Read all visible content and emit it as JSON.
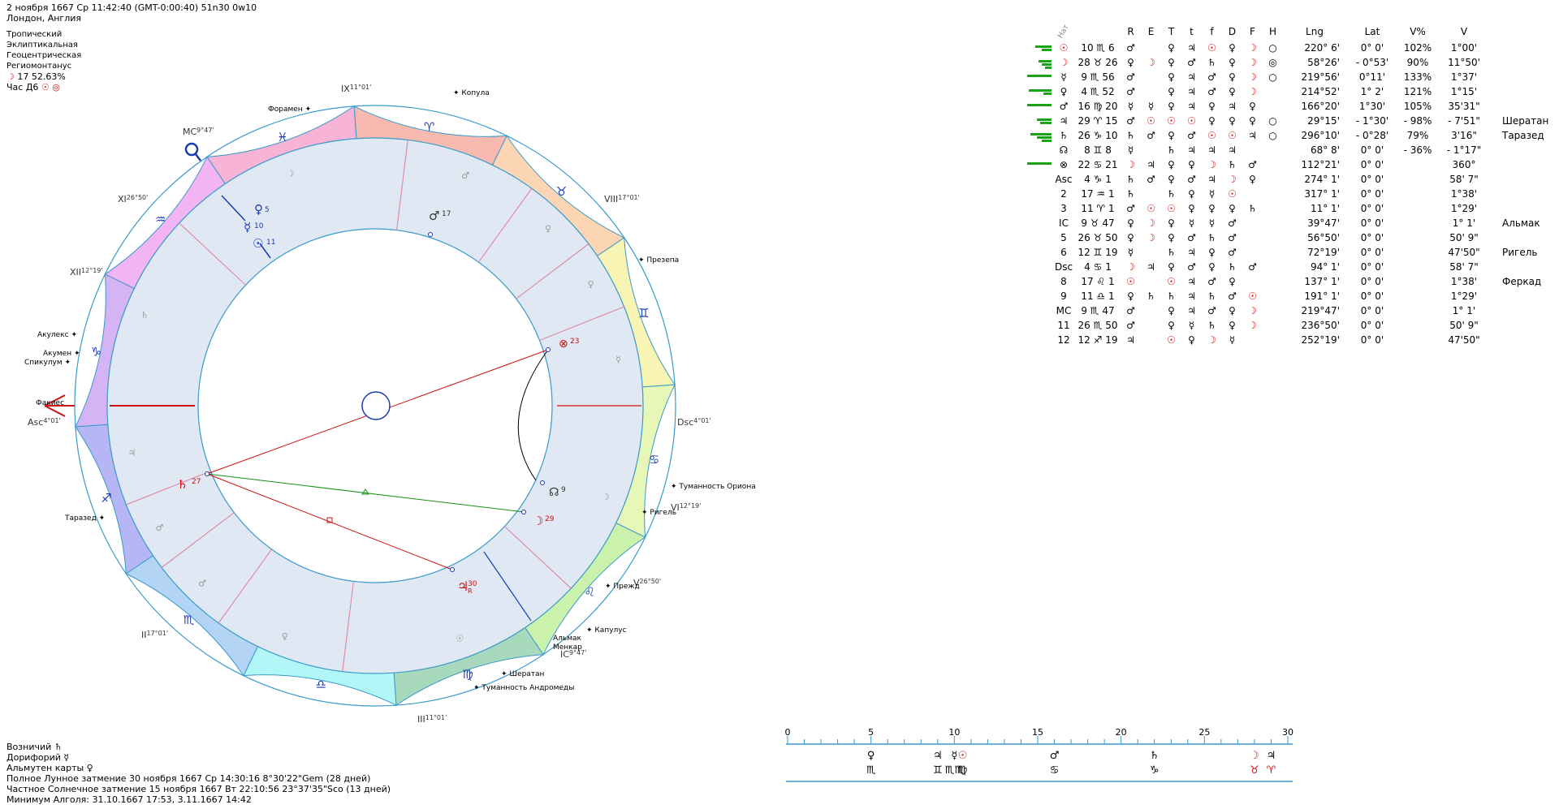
{
  "header": {
    "line1": "2 ноября 1667  Ср  11:42:40 (GMT-0:00:40) 51n30  0w10",
    "line2": "Лондон, Англия",
    "settings": [
      "Тропический",
      "Эклиптикальная",
      "Геоцентрическая",
      "Региомонтанус"
    ],
    "moon_phase": "17 52.63%",
    "hour": "Час Д6"
  },
  "houses": {
    "ix": "IX",
    "ix_deg": "11°01'",
    "mc": "MC",
    "mc_deg": "9°47'",
    "xi": "XI",
    "xi_deg": "26°50'",
    "xii": "XII",
    "xii_deg": "12°19'",
    "asc": "Asc",
    "asc_deg": "4°01'",
    "ii": "II",
    "ii_deg": "17°01'",
    "iii": "III",
    "iii_deg": "11°01'",
    "ic": "IC",
    "ic_deg": "9°47'",
    "v": "V",
    "v_deg": "26°50'",
    "vi": "VI",
    "vi_deg": "12°19'",
    "dsc": "Dsc",
    "dsc_deg": "4°01'",
    "viii": "VIII",
    "viii_deg": "17°01'"
  },
  "stars": {
    "kopula": "Копула",
    "foramen": "Форамен",
    "praesepe": "Презепа",
    "akulex": "Акулекс",
    "akumen": "Акумен",
    "spikulum": "Спикулум",
    "fakies": "Факиес",
    "taraz": "Таразед",
    "orion": "Туманность Ориона",
    "rigel": "Ригель",
    "prezhd": "Прежд",
    "kapulus": "Капулус",
    "almak": "Альмак",
    "menkar": "Менкар",
    "sheratan": "Шератан",
    "andromeda": "Туманность Андромеды"
  },
  "planets_in_chart": {
    "venus_deg": "5",
    "mercury_deg": "10",
    "sun_deg": "11",
    "mars_deg": "17",
    "pof_deg": "23",
    "node_deg": "9",
    "moon_deg": "29",
    "saturn_deg": "27",
    "jupiter_deg": "30",
    "jupiter_r": "R"
  },
  "table": {
    "head_nat": "Нат",
    "columns": [
      "R",
      "E",
      "T",
      "t",
      "f",
      "D",
      "F",
      "H",
      "Lng",
      "Lat",
      "V%",
      "V"
    ],
    "rows": [
      {
        "p": "☉",
        "d": "10",
        "s": "♏",
        "m": "6",
        "c": [
          "♂",
          "",
          "♀",
          "♃",
          "☉",
          "♀",
          "☽",
          "○"
        ],
        "lng": "220° 6'",
        "lat": "0° 0'",
        "vp": "102%",
        "v": "1°00'",
        "n": ""
      },
      {
        "p": "☽",
        "d": "28",
        "s": "♉",
        "m": "26",
        "c": [
          "♀",
          "☽",
          "♀",
          "♂",
          "♄",
          "♀",
          "☽",
          "◎"
        ],
        "lng": "58°26'",
        "lat": "- 0°53'",
        "vp": "90%",
        "v": "11°50'",
        "n": ""
      },
      {
        "p": "☿",
        "d": "9",
        "s": "♏",
        "m": "56",
        "c": [
          "♂",
          "",
          "♀",
          "♃",
          "♂",
          "♀",
          "☽",
          "○"
        ],
        "lng": "219°56'",
        "lat": "0°11'",
        "vp": "133%",
        "v": "1°37'",
        "n": ""
      },
      {
        "p": "♀",
        "d": "4",
        "s": "♏",
        "m": "52",
        "c": [
          "♂",
          "",
          "♀",
          "♃",
          "♂",
          "♀",
          "☽",
          ""
        ],
        "lng": "214°52'",
        "lat": "1° 2'",
        "vp": "121%",
        "v": "1°15'",
        "n": ""
      },
      {
        "p": "♂",
        "d": "16",
        "s": "♍",
        "m": "20",
        "c": [
          "☿",
          "☿",
          "♀",
          "♃",
          "♀",
          "♃",
          "♀",
          ""
        ],
        "lng": "166°20'",
        "lat": "1°30'",
        "vp": "105%",
        "v": "35'31\"",
        "n": ""
      },
      {
        "p": "♃",
        "d": "29",
        "s": "♈",
        "m": "15",
        "c": [
          "♂",
          "☉",
          "☉",
          "☉",
          "♀",
          "♀",
          "♀",
          "○"
        ],
        "lng": "29°15'",
        "lat": "- 1°30'",
        "vp": "- 98%",
        "v": "- 7'51\"",
        "n": "Шератан"
      },
      {
        "p": "♄",
        "d": "26",
        "s": "♑",
        "m": "10",
        "c": [
          "♄",
          "♂",
          "♀",
          "♂",
          "☉",
          "☉",
          "♃",
          "○"
        ],
        "lng": "296°10'",
        "lat": "- 0°28'",
        "vp": "79%",
        "v": "3'16\"",
        "n": "Таразед"
      },
      {
        "p": "☊",
        "d": "8",
        "s": "♊",
        "m": "8",
        "c": [
          "☿",
          "",
          "♄",
          "♃",
          "♃",
          "♃",
          "",
          ""
        ],
        "lng": "68° 8'",
        "lat": "0° 0'",
        "vp": "- 36%",
        "v": "- 1°17\"",
        "n": ""
      },
      {
        "p": "⊗",
        "d": "22",
        "s": "♋",
        "m": "21",
        "c": [
          "☽",
          "♃",
          "♀",
          "♀",
          "☽",
          "♄",
          "♂",
          ""
        ],
        "lng": "112°21'",
        "lat": "0° 0'",
        "vp": "",
        "v": "360°",
        "n": ""
      },
      {
        "p": "Asc",
        "d": "4",
        "s": "♑",
        "m": "1",
        "c": [
          "♄",
          "♂",
          "♀",
          "♂",
          "♃",
          "☽",
          "♀",
          ""
        ],
        "lng": "274° 1'",
        "lat": "0° 0'",
        "vp": "",
        "v": "58' 7\"",
        "n": ""
      },
      {
        "p": "2",
        "d": "17",
        "s": "♒",
        "m": "1",
        "c": [
          "♄",
          "",
          "♄",
          "♀",
          "☿",
          "☉",
          "",
          ""
        ],
        "lng": "317° 1'",
        "lat": "0° 0'",
        "vp": "",
        "v": "1°38'",
        "n": ""
      },
      {
        "p": "3",
        "d": "11",
        "s": "♈",
        "m": "1",
        "c": [
          "♂",
          "☉",
          "☉",
          "♀",
          "♀",
          "♀",
          "♄",
          ""
        ],
        "lng": "11° 1'",
        "lat": "0° 0'",
        "vp": "",
        "v": "1°29'",
        "n": ""
      },
      {
        "p": "IC",
        "d": "9",
        "s": "♉",
        "m": "47",
        "c": [
          "♀",
          "☽",
          "♀",
          "☿",
          "☿",
          "♂",
          "",
          ""
        ],
        "lng": "39°47'",
        "lat": "0° 0'",
        "vp": "",
        "v": "1° 1'",
        "n": "Альмак"
      },
      {
        "p": "5",
        "d": "26",
        "s": "♉",
        "m": "50",
        "c": [
          "♀",
          "☽",
          "♀",
          "♂",
          "♄",
          "♂",
          "",
          ""
        ],
        "lng": "56°50'",
        "lat": "0° 0'",
        "vp": "",
        "v": "50' 9\"",
        "n": ""
      },
      {
        "p": "6",
        "d": "12",
        "s": "♊",
        "m": "19",
        "c": [
          "☿",
          "",
          "♄",
          "♃",
          "♀",
          "♂",
          "",
          ""
        ],
        "lng": "72°19'",
        "lat": "0° 0'",
        "vp": "",
        "v": "47'50\"",
        "n": "Ригель"
      },
      {
        "p": "Dsc",
        "d": "4",
        "s": "♋",
        "m": "1",
        "c": [
          "☽",
          "♃",
          "♀",
          "♂",
          "♀",
          "♄",
          "♂",
          ""
        ],
        "lng": "94° 1'",
        "lat": "0° 0'",
        "vp": "",
        "v": "58' 7\"",
        "n": ""
      },
      {
        "p": "8",
        "d": "17",
        "s": "♌",
        "m": "1",
        "c": [
          "☉",
          "",
          "☉",
          "♃",
          "♂",
          "♀",
          "",
          ""
        ],
        "lng": "137° 1'",
        "lat": "0° 0'",
        "vp": "",
        "v": "1°38'",
        "n": "Феркад"
      },
      {
        "p": "9",
        "d": "11",
        "s": "♎",
        "m": "1",
        "c": [
          "♀",
          "♄",
          "♄",
          "♃",
          "♄",
          "♂",
          "☉",
          ""
        ],
        "lng": "191° 1'",
        "lat": "0° 0'",
        "vp": "",
        "v": "1°29'",
        "n": ""
      },
      {
        "p": "MC",
        "d": "9",
        "s": "♏",
        "m": "47",
        "c": [
          "♂",
          "",
          "♀",
          "♃",
          "♂",
          "♀",
          "☽",
          ""
        ],
        "lng": "219°47'",
        "lat": "0° 0'",
        "vp": "",
        "v": "1° 1'",
        "n": ""
      },
      {
        "p": "11",
        "d": "26",
        "s": "♏",
        "m": "50",
        "c": [
          "♂",
          "",
          "♀",
          "☿",
          "♄",
          "♀",
          "☽",
          ""
        ],
        "lng": "236°50'",
        "lat": "0° 0'",
        "vp": "",
        "v": "50' 9\"",
        "n": ""
      },
      {
        "p": "12",
        "d": "12",
        "s": "♐",
        "m": "19",
        "c": [
          "♃",
          "",
          "☉",
          "♀",
          "☽",
          "☿",
          "",
          ""
        ],
        "lng": "252°19'",
        "lat": "0° 0'",
        "vp": "",
        "v": "47'50\"",
        "n": ""
      }
    ]
  },
  "footer": {
    "l1_label": "Возничий",
    "l1_val": "♄",
    "l2_label": "Дорифорий",
    "l2_val": "☿",
    "l3_label": "Альмутен карты",
    "l3_val": "♀",
    "l4": "Полное Лунное затмение 30 ноября 1667 Ср 14:30:16  8°30'22\"Gem (28 дней)",
    "l5": "Частное Солнечное затмение 15 ноября 1667 Вт 22:10:56 23°37'35\"Sco (13 дней)",
    "l6": "Минимум Алголя: 31.10.1667 17:53,  3.11.1667 14:42"
  },
  "ruler": {
    "ticks": [
      "0",
      "5",
      "10",
      "15",
      "20",
      "25",
      "30"
    ],
    "row1": [
      "♀",
      "♃",
      "☿",
      "☉",
      "♂",
      "♄",
      "☽",
      "♃"
    ],
    "row2": [
      "♏",
      "♊",
      "♏♏",
      "♍",
      "♋",
      "♑",
      "♉",
      "♈"
    ]
  },
  "colors": {
    "accent_red": "#d01010",
    "accent_blue": "#1a3bb0",
    "green_bar": "#19a319",
    "line_teal": "#3a9acb"
  }
}
